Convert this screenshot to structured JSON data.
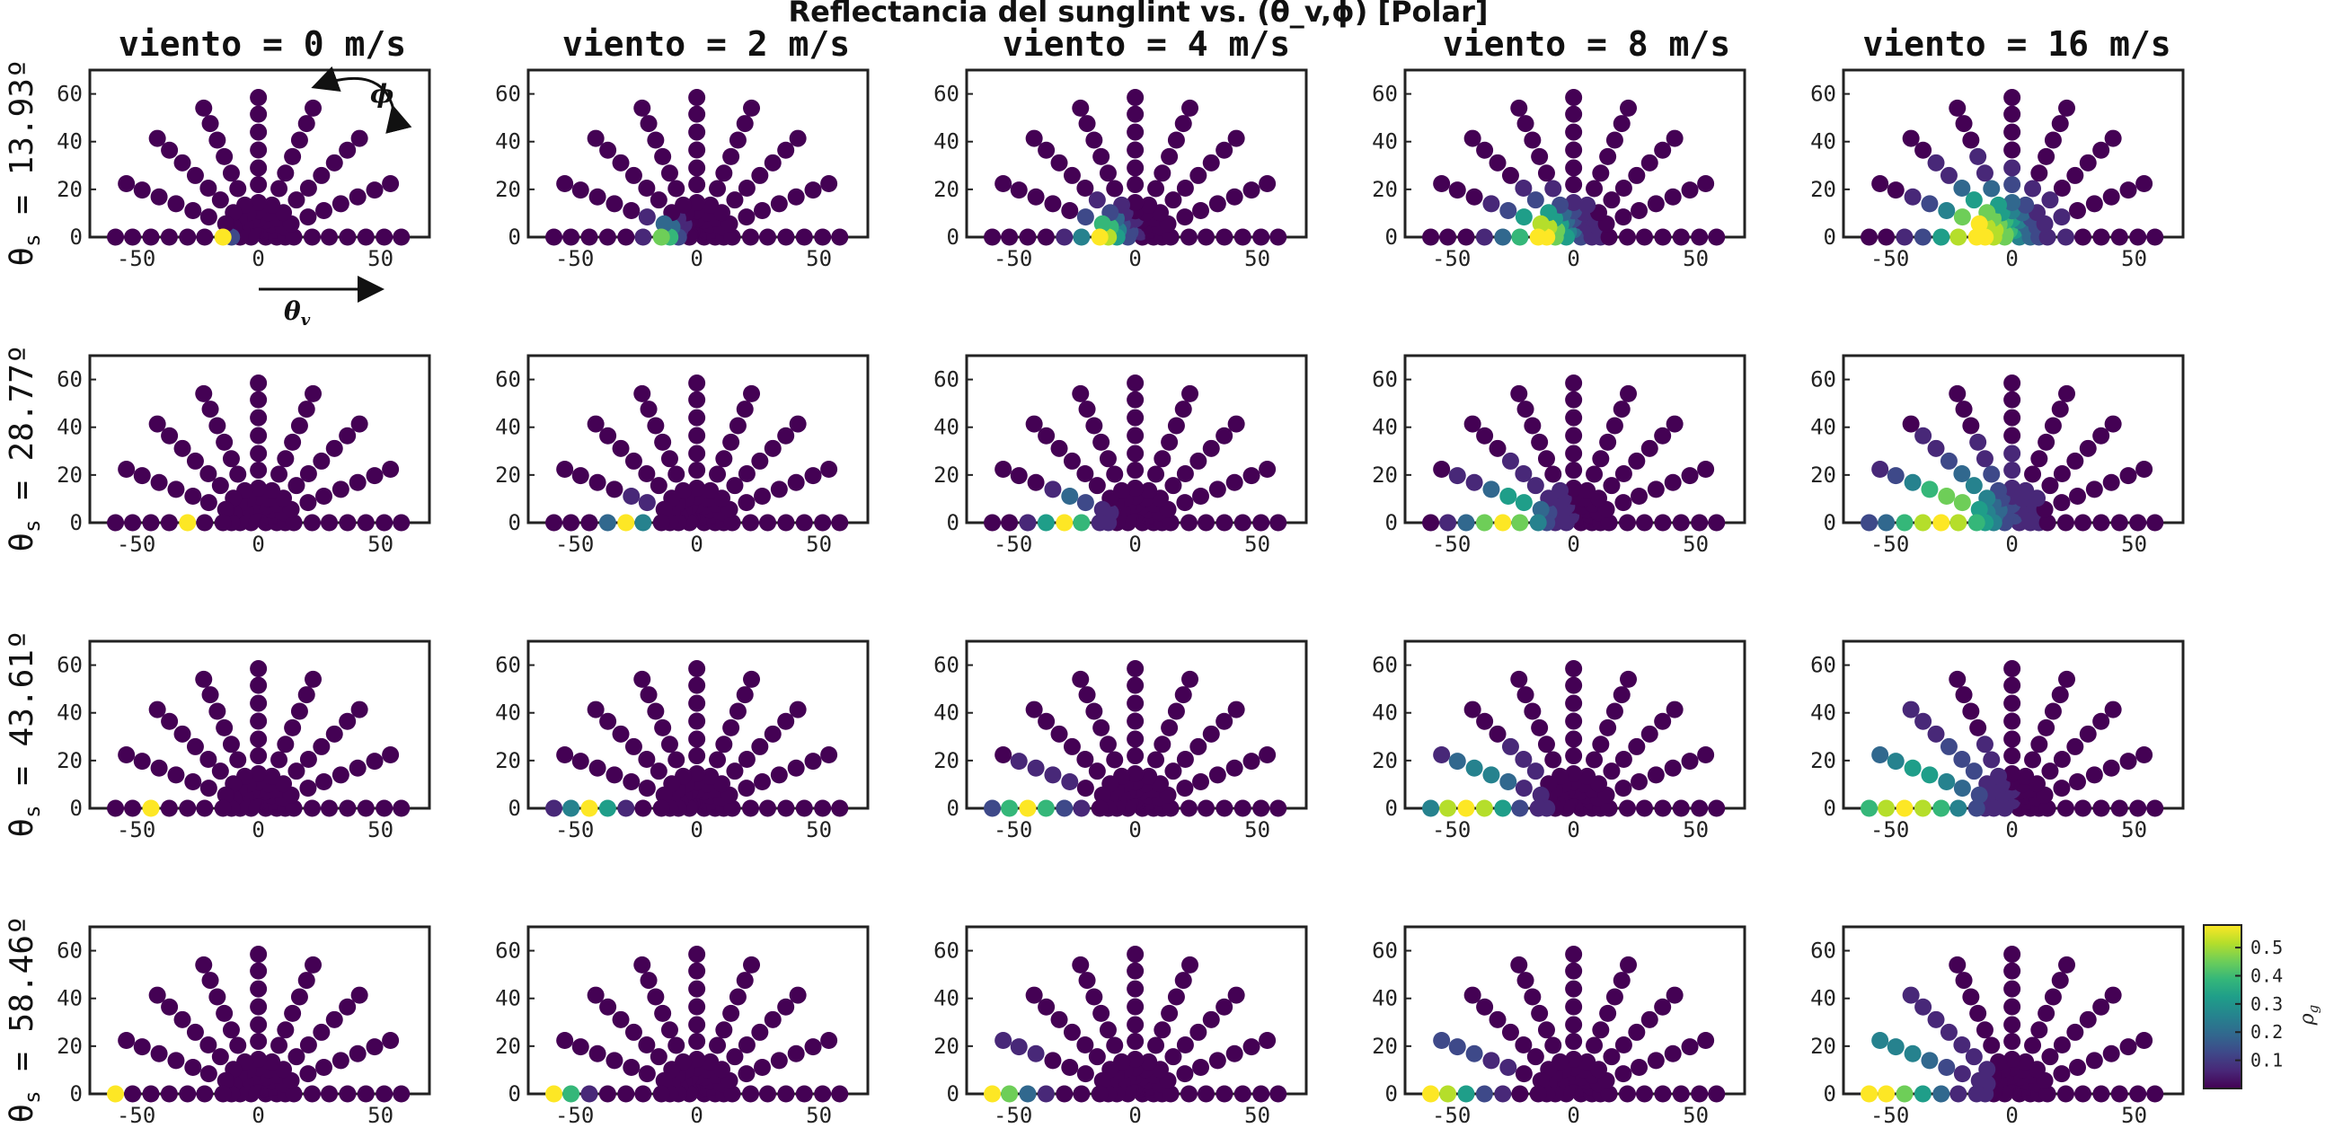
{
  "figure": {
    "title": "Reflectancia del sunglint vs. (θ_v,ϕ) [Polar]",
    "column_titles": [
      "viento = 0 m/s",
      "viento = 2 m/s",
      "viento = 4 m/s",
      "viento = 8 m/s",
      "viento = 16 m/s"
    ],
    "row_titles": [
      "θ_s = 13.93º",
      "θ_s = 28.77º",
      "θ_s = 43.61º",
      "θ_s = 58.46º"
    ],
    "annotations": {
      "phi": "ϕ",
      "theta_v": "θ_v"
    }
  },
  "chart_data": {
    "type": "scatter",
    "layout": "4x5 small multiples, polar half-disc of viewing angles",
    "wind_speeds_m_s": [
      0,
      2,
      4,
      8,
      16
    ],
    "theta_s_deg": [
      13.93,
      28.77,
      43.61,
      58.46
    ],
    "theta_v_rings_deg": [
      3,
      7.5,
      11,
      14.5,
      22,
      29,
      36.5,
      44,
      51.5,
      58.5
    ],
    "phi_deg": [
      0,
      22.5,
      45,
      67.5,
      90,
      112.5,
      135,
      157.5,
      180
    ],
    "xlim": [
      -69,
      70
    ],
    "ylim": [
      0,
      70
    ],
    "xticks": [
      -50,
      0,
      50
    ],
    "yticks": [
      0,
      20,
      40,
      60
    ],
    "colorbar": {
      "label": "ρ_g",
      "range": [
        0,
        0.58
      ],
      "ticks": [
        0.1,
        0.2,
        0.3,
        0.4,
        0.5
      ],
      "colormap": "viridis"
    },
    "glint_model": {
      "description": "approximate reflectance rho_g read from marker colours; peaks at the specular direction (theta_v = theta_s, phi = 180)",
      "peak_values": [
        [
          0.58,
          0.45,
          0.58,
          0.58,
          0.58
        ],
        [
          0.58,
          0.58,
          0.58,
          0.58,
          0.58
        ],
        [
          0.58,
          0.58,
          0.58,
          0.58,
          0.58
        ],
        [
          0.58,
          0.58,
          0.58,
          0.58,
          0.58
        ]
      ],
      "spread_deg": [
        [
          1.5,
          4,
          6,
          9,
          13
        ],
        [
          1.8,
          5,
          7,
          10,
          15
        ],
        [
          2,
          6,
          8,
          12,
          16
        ],
        [
          2.2,
          7,
          10,
          13,
          18
        ]
      ]
    }
  },
  "colors": {
    "viridis": [
      "#440154",
      "#482878",
      "#3e4989",
      "#31688e",
      "#26828e",
      "#1f9e89",
      "#35b779",
      "#6ece58",
      "#b5de2b",
      "#fde725"
    ],
    "axis": "#222222",
    "background": "#ffffff"
  }
}
